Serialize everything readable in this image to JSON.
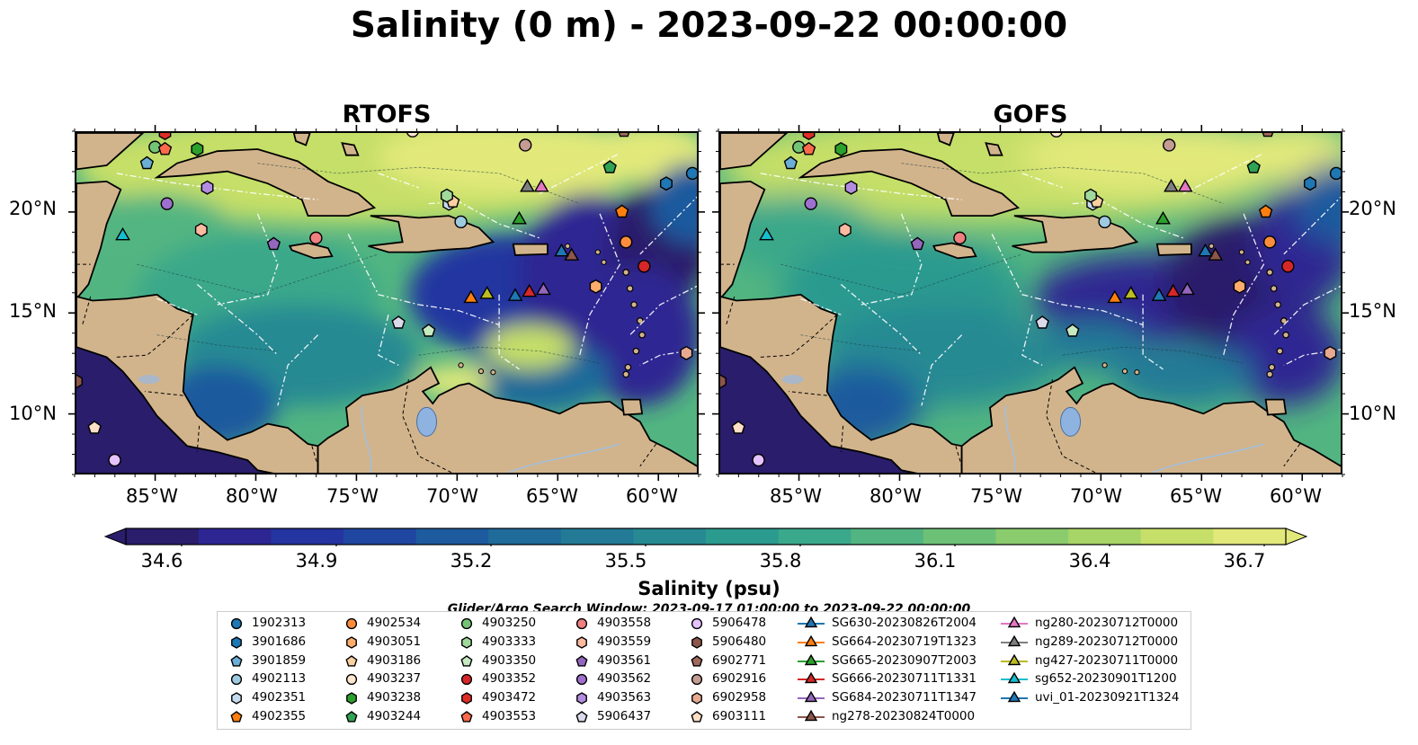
{
  "title": "Salinity (0 m) - 2023-09-22 00:00:00",
  "panels": [
    {
      "title": "RTOFS"
    },
    {
      "title": "GOFS"
    }
  ],
  "lon_ticks": [
    "85°W",
    "80°W",
    "75°W",
    "70°W",
    "65°W",
    "60°W"
  ],
  "lat_ticks": [
    "20°N",
    "15°N",
    "10°N"
  ],
  "colorbar": {
    "ticks": [
      "34.6",
      "34.9",
      "35.2",
      "35.5",
      "35.8",
      "36.1",
      "36.4",
      "36.7"
    ],
    "label": "Salinity (psu)",
    "colors": [
      "#2a1d6b",
      "#2d2592",
      "#2434a0",
      "#1f46a0",
      "#1d5a9e",
      "#1f6b9a",
      "#237a96",
      "#278a93",
      "#2b9a8f",
      "#3aa88a",
      "#52b581",
      "#6cc176",
      "#8acb6d",
      "#a8d567",
      "#c6df68",
      "#e2e97a"
    ]
  },
  "search_window": "Glider/Argo Search Window: 2023-09-17 01:00:00 to 2023-09-22 00:00:00",
  "chart_data": [
    {
      "type": "heatmap",
      "title": "RTOFS",
      "variable": "Salinity (psu)",
      "depth": "0 m",
      "xlim": [
        -89,
        -58
      ],
      "ylim": [
        7,
        24
      ],
      "x_ticks": [
        -85,
        -80,
        -75,
        -70,
        -65,
        -60
      ],
      "y_ticks": [
        20,
        15,
        10
      ],
      "colorbar_range": [
        34.6,
        36.7
      ]
    },
    {
      "type": "heatmap",
      "title": "GOFS",
      "variable": "Salinity (psu)",
      "depth": "0 m",
      "xlim": [
        -89,
        -58
      ],
      "ylim": [
        7,
        24
      ],
      "x_ticks": [
        -85,
        -80,
        -75,
        -70,
        -65,
        -60
      ],
      "y_ticks": [
        20,
        15,
        10
      ],
      "colorbar_range": [
        34.6,
        36.7
      ]
    }
  ],
  "platforms": [
    {
      "name": "1902313",
      "marker": "circle",
      "color": "#1f77b4",
      "lon": -58.4,
      "lat": 22.0
    },
    {
      "name": "3901686",
      "marker": "hexagon",
      "color": "#1f77b4",
      "lon": -59.7,
      "lat": 21.5
    },
    {
      "name": "3901859",
      "marker": "pentagon",
      "color": "#6baed6",
      "lon": -85.5,
      "lat": 22.5
    },
    {
      "name": "4902113",
      "marker": "circle",
      "color": "#9ecae1",
      "lon": -69.9,
      "lat": 19.6
    },
    {
      "name": "4902351",
      "marker": "hexagon",
      "color": "#c6dbef",
      "lon": -70.5,
      "lat": 20.5
    },
    {
      "name": "4902355",
      "marker": "pentagon",
      "color": "#ff7f0e",
      "lon": -61.9,
      "lat": 20.1
    },
    {
      "name": "4902534",
      "marker": "circle",
      "color": "#fd8d3c",
      "lon": -61.7,
      "lat": 18.6
    },
    {
      "name": "4903051",
      "marker": "hexagon",
      "color": "#fdae6b",
      "lon": -63.2,
      "lat": 16.4
    },
    {
      "name": "4903186",
      "marker": "pentagon",
      "color": "#fdd0a2",
      "lon": -70.3,
      "lat": 20.6
    },
    {
      "name": "4903237",
      "marker": "circle",
      "color": "#fee6ce",
      "lon": -72.3,
      "lat": 24.1
    },
    {
      "name": "4903238",
      "marker": "hexagon",
      "color": "#2ca02c",
      "lon": -83.0,
      "lat": 23.2
    },
    {
      "name": "4903244",
      "marker": "pentagon",
      "color": "#31a354",
      "lon": -62.5,
      "lat": 22.3
    },
    {
      "name": "4903250",
      "marker": "circle",
      "color": "#74c476",
      "lon": -85.1,
      "lat": 23.3
    },
    {
      "name": "4903333",
      "marker": "hexagon",
      "color": "#a1d99b",
      "lon": -70.6,
      "lat": 20.9
    },
    {
      "name": "4903350",
      "marker": "pentagon",
      "color": "#c7e9c0",
      "lon": -71.5,
      "lat": 14.2
    },
    {
      "name": "4903352",
      "marker": "circle",
      "color": "#d62728",
      "lon": -60.8,
      "lat": 17.4
    },
    {
      "name": "4903472",
      "marker": "hexagon",
      "color": "#de2d26",
      "lon": -84.6,
      "lat": 24.0
    },
    {
      "name": "4903553",
      "marker": "pentagon",
      "color": "#fb6a4a",
      "lon": -84.6,
      "lat": 23.2
    },
    {
      "name": "4903558",
      "marker": "circle",
      "color": "#f08080",
      "lon": -77.1,
      "lat": 18.8
    },
    {
      "name": "4903559",
      "marker": "hexagon",
      "color": "#fcbba1",
      "lon": -82.8,
      "lat": 19.2
    },
    {
      "name": "4903561",
      "marker": "pentagon",
      "color": "#9467bd",
      "lon": -79.2,
      "lat": 18.5
    },
    {
      "name": "4903562",
      "marker": "circle",
      "color": "#9e6fce",
      "lon": -84.5,
      "lat": 20.5
    },
    {
      "name": "4903563",
      "marker": "hexagon",
      "color": "#b28ce0",
      "lon": -82.5,
      "lat": 21.3
    },
    {
      "name": "5906437",
      "marker": "pentagon",
      "color": "#dadaeb",
      "lon": -73.0,
      "lat": 14.6
    },
    {
      "name": "5906478",
      "marker": "circle",
      "color": "#e5c3ff",
      "lon": -87.1,
      "lat": 7.8
    },
    {
      "name": "5906480",
      "marker": "hexagon",
      "color": "#8c564b",
      "lon": -89.0,
      "lat": 11.7
    },
    {
      "name": "6902771",
      "marker": "pentagon",
      "color": "#a0695c",
      "lon": -61.8,
      "lat": 24.1
    },
    {
      "name": "6902916",
      "marker": "circle",
      "color": "#c49c94",
      "lon": -66.7,
      "lat": 23.4
    },
    {
      "name": "6902958",
      "marker": "hexagon",
      "color": "#e7a990",
      "lon": -58.7,
      "lat": 13.1
    },
    {
      "name": "6903111",
      "marker": "pentagon",
      "color": "#fde0c5",
      "lon": -88.1,
      "lat": 9.4
    },
    {
      "name": "SG630-20230826T2004",
      "marker": "triangle",
      "color": "#1f77b4",
      "lon": -67.2,
      "lat": 15.9
    },
    {
      "name": "SG664-20230719T1323",
      "marker": "triangle",
      "color": "#ff7f0e",
      "lon": -69.4,
      "lat": 15.8
    },
    {
      "name": "SG665-20230907T2003",
      "marker": "triangle",
      "color": "#2ca02c",
      "lon": -67.0,
      "lat": 19.7
    },
    {
      "name": "SG666-20230711T1331",
      "marker": "triangle",
      "color": "#d62728",
      "lon": -66.5,
      "lat": 16.1
    },
    {
      "name": "SG684-20230711T1347",
      "marker": "triangle",
      "color": "#9467bd",
      "lon": -65.8,
      "lat": 16.2
    },
    {
      "name": "ng278-20230824T0000",
      "marker": "triangle",
      "color": "#8c564b",
      "lon": -64.4,
      "lat": 17.9
    },
    {
      "name": "ng280-20230712T0000",
      "marker": "triangle",
      "color": "#e377c2",
      "lon": -65.9,
      "lat": 21.3
    },
    {
      "name": "ng289-20230712T0000",
      "marker": "triangle",
      "color": "#7f7f7f",
      "lon": -66.6,
      "lat": 21.3
    },
    {
      "name": "ng427-20230711T0000",
      "marker": "triangle",
      "color": "#bcbd22",
      "lon": -68.6,
      "lat": 16.0
    },
    {
      "name": "sg652-20230901T1200",
      "marker": "triangle",
      "color": "#17becf",
      "lon": -86.7,
      "lat": 18.9
    },
    {
      "name": "uvi_01-20230921T1324",
      "marker": "triangle",
      "color": "#1f77b4",
      "lon": -64.9,
      "lat": 18.1
    }
  ]
}
